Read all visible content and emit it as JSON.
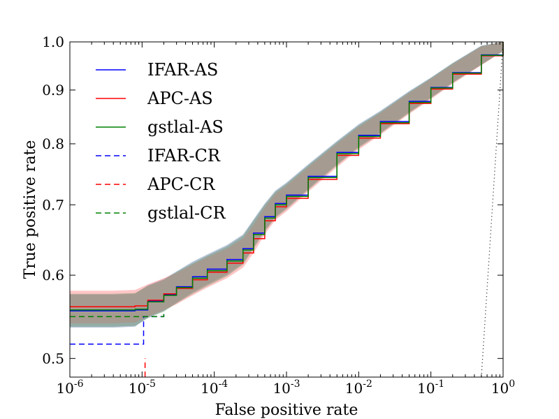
{
  "chart_data": {
    "type": "line",
    "title": "",
    "xlabel": "False positive rate",
    "ylabel": "True positive rate",
    "xscale": "log",
    "yscale": "log",
    "xlim": [
      1e-06,
      1.0
    ],
    "ylim": [
      0.48,
      1.0
    ],
    "x_ticks": [
      {
        "value": 1e-06,
        "base": "10",
        "exp": "-6"
      },
      {
        "value": 1e-05,
        "base": "10",
        "exp": "-5"
      },
      {
        "value": 0.0001,
        "base": "10",
        "exp": "-4"
      },
      {
        "value": 0.001,
        "base": "10",
        "exp": "-3"
      },
      {
        "value": 0.01,
        "base": "10",
        "exp": "-2"
      },
      {
        "value": 0.1,
        "base": "10",
        "exp": "-1"
      },
      {
        "value": 1,
        "base": "10",
        "exp": "0"
      }
    ],
    "y_ticks": [
      {
        "value": 0.5,
        "label": "0.5"
      },
      {
        "value": 0.6,
        "label": "0.6"
      },
      {
        "value": 0.7,
        "label": "0.7"
      },
      {
        "value": 0.8,
        "label": "0.8"
      },
      {
        "value": 0.9,
        "label": "0.9"
      },
      {
        "value": 1.0,
        "label": "1.0"
      }
    ],
    "legend_position": "upper-left",
    "reference_line": {
      "name": "chance",
      "color": "#000000",
      "style": "dotted",
      "points": [
        [
          0.5,
          0.48
        ],
        [
          1.0,
          1.0
        ]
      ]
    },
    "series": [
      {
        "name": "IFAR-AS",
        "color": "#0000ff",
        "style": "solid",
        "band": 0.02,
        "band_color": "#5f7fa6",
        "points": [
          [
            1e-06,
            0.555
          ],
          [
            2e-06,
            0.555
          ],
          [
            4e-06,
            0.555
          ],
          [
            8e-06,
            0.556
          ],
          [
            1.2e-05,
            0.567
          ],
          [
            2e-05,
            0.575
          ],
          [
            3e-05,
            0.585
          ],
          [
            5e-05,
            0.598
          ],
          [
            8e-05,
            0.608
          ],
          [
            0.00015,
            0.621
          ],
          [
            0.00025,
            0.636
          ],
          [
            0.00035,
            0.658
          ],
          [
            0.0005,
            0.682
          ],
          [
            0.0007,
            0.702
          ],
          [
            0.001,
            0.715
          ],
          [
            0.002,
            0.745
          ],
          [
            0.005,
            0.785
          ],
          [
            0.01,
            0.815
          ],
          [
            0.02,
            0.84
          ],
          [
            0.05,
            0.878
          ],
          [
            0.1,
            0.905
          ],
          [
            0.2,
            0.935
          ],
          [
            0.5,
            0.972
          ],
          [
            1,
            1.0
          ]
        ]
      },
      {
        "name": "APC-AS",
        "color": "#ff0000",
        "style": "solid",
        "band": 0.02,
        "band_color": "#ff8080",
        "points": [
          [
            1e-06,
            0.56
          ],
          [
            2e-06,
            0.56
          ],
          [
            4e-06,
            0.56
          ],
          [
            8e-06,
            0.561
          ],
          [
            1.2e-05,
            0.568
          ],
          [
            2e-05,
            0.576
          ],
          [
            3e-05,
            0.583
          ],
          [
            5e-05,
            0.594
          ],
          [
            8e-05,
            0.604
          ],
          [
            0.00015,
            0.616
          ],
          [
            0.00025,
            0.63
          ],
          [
            0.00035,
            0.65
          ],
          [
            0.0005,
            0.676
          ],
          [
            0.0007,
            0.697
          ],
          [
            0.001,
            0.71
          ],
          [
            0.002,
            0.74
          ],
          [
            0.005,
            0.78
          ],
          [
            0.01,
            0.81
          ],
          [
            0.02,
            0.836
          ],
          [
            0.05,
            0.874
          ],
          [
            0.1,
            0.902
          ],
          [
            0.2,
            0.932
          ],
          [
            0.5,
            0.97
          ],
          [
            1,
            1.0
          ]
        ]
      },
      {
        "name": "gstlal-AS",
        "color": "#008000",
        "style": "solid",
        "band": 0.02,
        "band_color": "#6b8e6b",
        "points": [
          [
            1e-06,
            0.556
          ],
          [
            2e-06,
            0.556
          ],
          [
            4e-06,
            0.556
          ],
          [
            8e-06,
            0.557
          ],
          [
            1.2e-05,
            0.566
          ],
          [
            2e-05,
            0.574
          ],
          [
            3e-05,
            0.584
          ],
          [
            5e-05,
            0.596
          ],
          [
            8e-05,
            0.606
          ],
          [
            0.00015,
            0.619
          ],
          [
            0.00025,
            0.634
          ],
          [
            0.00035,
            0.656
          ],
          [
            0.0005,
            0.68
          ],
          [
            0.0007,
            0.7
          ],
          [
            0.001,
            0.713
          ],
          [
            0.002,
            0.743
          ],
          [
            0.005,
            0.783
          ],
          [
            0.01,
            0.813
          ],
          [
            0.02,
            0.838
          ],
          [
            0.05,
            0.876
          ],
          [
            0.1,
            0.904
          ],
          [
            0.2,
            0.934
          ],
          [
            0.5,
            0.971
          ],
          [
            1,
            1.0
          ]
        ]
      },
      {
        "name": "IFAR-CR",
        "color": "#0000ff",
        "style": "dashed",
        "band": 0.0,
        "band_color": "#9966cc",
        "points": [
          [
            1e-06,
            0.516
          ],
          [
            1.05e-05,
            0.516
          ],
          [
            1.05e-05,
            0.548
          ],
          [
            1.5e-05,
            0.548
          ],
          [
            2e-05,
            0.552
          ]
        ]
      },
      {
        "name": "APC-CR",
        "color": "#ff0000",
        "style": "dashed",
        "band": 0.0,
        "band_color": "#ffb0b0",
        "points": [
          [
            1.1e-05,
            0.48
          ],
          [
            1.1e-05,
            0.5
          ]
        ]
      },
      {
        "name": "gstlal-CR",
        "color": "#008000",
        "style": "dashed",
        "band": 0.0,
        "band_color": "#6b8e6b",
        "points": [
          [
            1e-06,
            0.548
          ],
          [
            1.2e-05,
            0.548
          ],
          [
            2e-05,
            0.552
          ]
        ]
      }
    ]
  }
}
